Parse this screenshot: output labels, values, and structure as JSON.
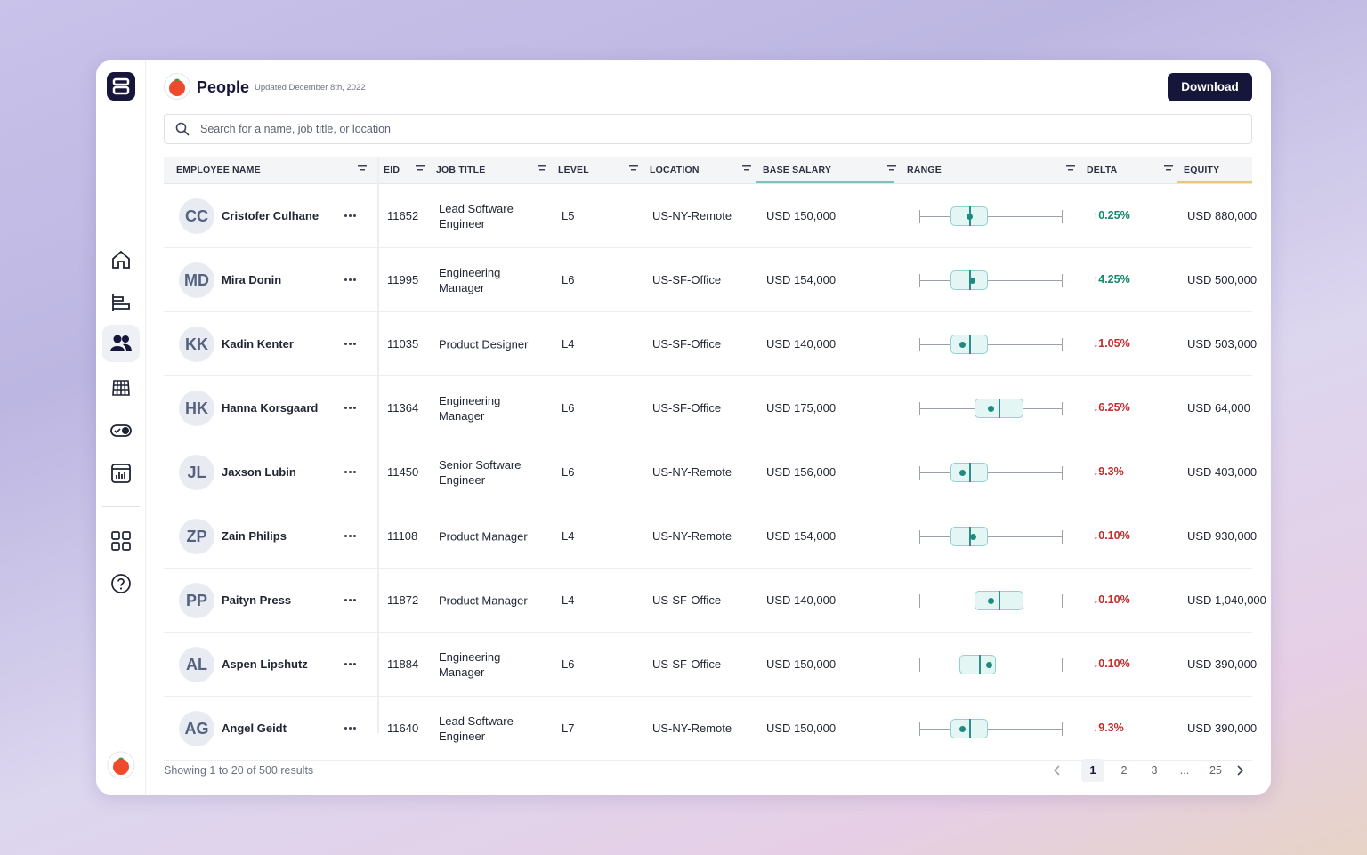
{
  "header": {
    "title": "People",
    "updated": "Updated December 8th, 2022",
    "button": "Download"
  },
  "search": {
    "placeholder": "Search for a name, job title, or location"
  },
  "table": {
    "columns": [
      "EMPLOYEE NAME",
      "EID",
      "JOB TITLE",
      "LEVEL",
      "LOCATION",
      "BASE SALARY",
      "RANGE",
      "DELTA",
      "EQUITY"
    ],
    "rows": [
      {
        "initials": "CC",
        "name": "Cristofer Culhane",
        "eid": "11652",
        "job": "Lead Software Engineer",
        "level": "L5",
        "location": "US-NY-Remote",
        "salary": "USD 150,000",
        "range": [
          22,
          35,
          48,
          35
        ],
        "delta": "↑0.25%",
        "equity": "USD 880,000"
      },
      {
        "initials": "MD",
        "name": "Mira Donin",
        "eid": "11995",
        "job": "Engineering Manager",
        "level": "L6",
        "location": "US-SF-Office",
        "salary": "USD 154,000",
        "range": [
          22,
          35,
          48,
          37
        ],
        "delta": "↑4.25%",
        "equity": "USD 500,000"
      },
      {
        "initials": "KK",
        "name": "Kadin Kenter",
        "eid": "11035",
        "job": "Product Designer",
        "level": "L4",
        "location": "US-SF-Office",
        "salary": "USD 140,000",
        "range": [
          22,
          35,
          48,
          30
        ],
        "delta": "↓1.05%",
        "equity": "USD 503,000"
      },
      {
        "initials": "HK",
        "name": "Hanna Korsgaard",
        "eid": "11364",
        "job": "Engineering Manager",
        "level": "L6",
        "location": "US-SF-Office",
        "salary": "USD 175,000",
        "range": [
          39,
          56,
          73,
          50
        ],
        "delta": "↓6.25%",
        "equity": "USD 64,000"
      },
      {
        "initials": "JL",
        "name": "Jaxson Lubin",
        "eid": "11450",
        "job": "Senior Software Engineer",
        "level": "L6",
        "location": "US-NY-Remote",
        "salary": "USD 156,000",
        "range": [
          22,
          35,
          48,
          30
        ],
        "delta": "↓9.3%",
        "equity": "USD 403,000"
      },
      {
        "initials": "ZP",
        "name": "Zain Philips",
        "eid": "11108",
        "job": "Product Manager",
        "level": "L4",
        "location": "US-NY-Remote",
        "salary": "USD 154,000",
        "range": [
          22,
          35,
          48,
          38
        ],
        "delta": "↓0.10%",
        "equity": "USD 930,000"
      },
      {
        "initials": "PP",
        "name": "Paityn Press",
        "eid": "11872",
        "job": "Product Manager",
        "level": "L4",
        "location": "US-SF-Office",
        "salary": "USD 140,000",
        "range": [
          39,
          56,
          73,
          50
        ],
        "delta": "↓0.10%",
        "equity": "USD 1,040,000"
      },
      {
        "initials": "AL",
        "name": "Aspen Lipshutz",
        "eid": "11884",
        "job": "Engineering Manager",
        "level": "L6",
        "location": "US-SF-Office",
        "salary": "USD 150,000",
        "range": [
          28,
          42,
          54,
          49
        ],
        "delta": "↓0.10%",
        "equity": "USD 390,000"
      },
      {
        "initials": "AG",
        "name": "Angel Geidt",
        "eid": "11640",
        "job": "Lead Software Engineer",
        "level": "L7",
        "location": "US-NY-Remote",
        "salary": "USD 150,000",
        "range": [
          22,
          35,
          48,
          30
        ],
        "delta": "↓9.3%",
        "equity": "USD 390,000"
      }
    ]
  },
  "footer": {
    "summary": "Showing 1 to 20 of 500 results",
    "pages": [
      "1",
      "2",
      "3",
      "...",
      "25"
    ],
    "current": "1"
  }
}
